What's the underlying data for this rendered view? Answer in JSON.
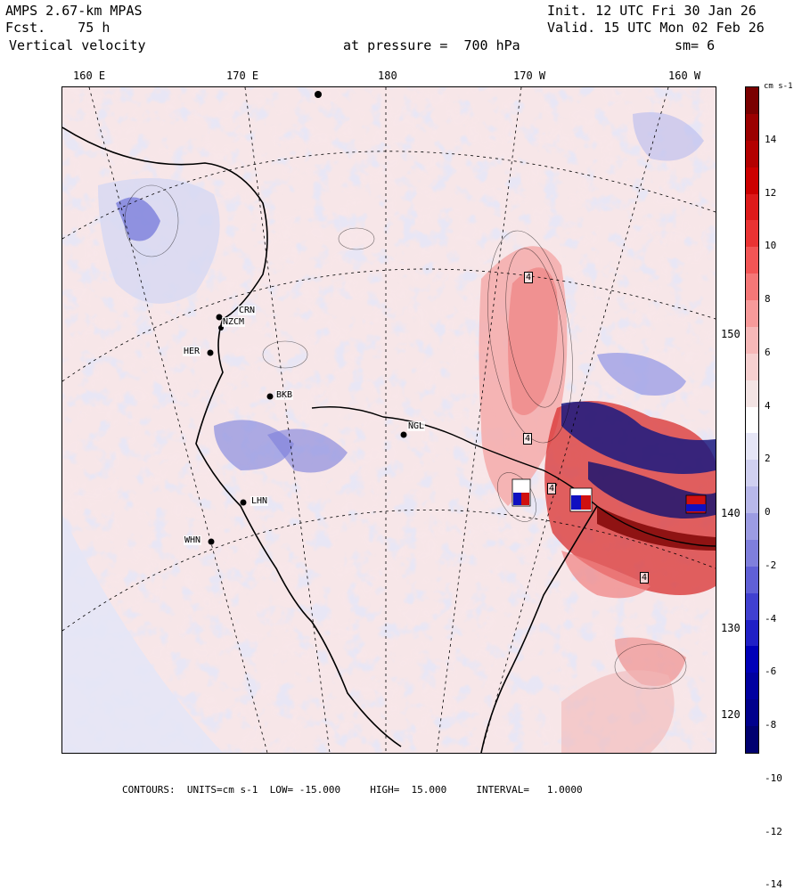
{
  "header": {
    "model": "AMPS 2.67-km MPAS",
    "forecast": "Fcst.    75 h",
    "field": "Vertical velocity",
    "init": "Init. 12 UTC Fri 30 Jan 26",
    "valid": "Valid. 15 UTC Mon 02 Feb 26",
    "pressure": "at pressure =  700 hPa",
    "smoothing": "sm= 6"
  },
  "longitude_labels": [
    "160 E",
    "170 E",
    "180",
    "170 W",
    "160 W"
  ],
  "latitude_labels": [
    "150 W",
    "140 W",
    "130 W",
    "120 W"
  ],
  "stations": [
    "CRN",
    "NZCM",
    "HER",
    "BKB",
    "NGL",
    "LHN",
    "WHN"
  ],
  "contour_labels": [
    "4",
    "4",
    "4",
    "4"
  ],
  "colorbar": {
    "units": "cm s-1",
    "labels": [
      "14",
      "12",
      "10",
      "8",
      "6",
      "4",
      "2",
      "0",
      "-2",
      "-4",
      "-6",
      "-8",
      "-10",
      "-12",
      "-14"
    ],
    "colors": [
      "#7a0000",
      "#9b0000",
      "#b30000",
      "#cc0000",
      "#dd1a1a",
      "#ea3333",
      "#f25555",
      "#f57777",
      "#f79a9a",
      "#f6b8b8",
      "#f6d0d0",
      "#f3e4e4",
      "#ffffff",
      "#e6e6f6",
      "#d0d0f0",
      "#b8b8ea",
      "#9c9ce3",
      "#7f7fdc",
      "#6060d6",
      "#4040d0",
      "#2020c6",
      "#0000b8",
      "#0000a0",
      "#00008c",
      "#000070"
    ]
  },
  "footer": {
    "contours": "CONTOURS:",
    "units": "UNITS=cm s-1",
    "low": "LOW= -15.000",
    "high": "HIGH=  15.000",
    "interval": "INTERVAL=   1.0000"
  }
}
